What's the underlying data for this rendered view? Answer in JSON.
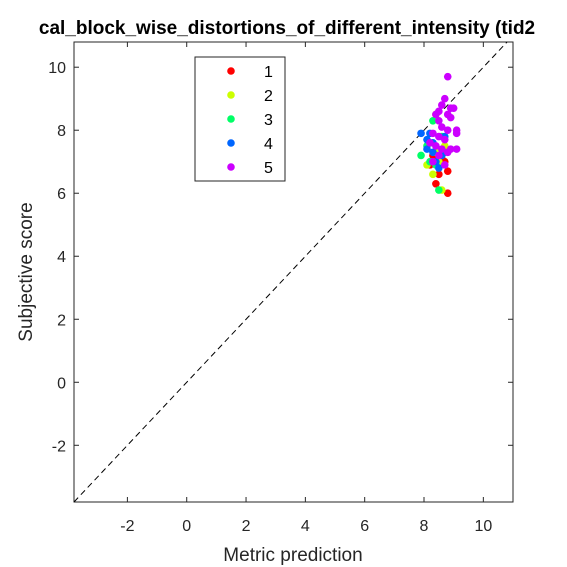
{
  "chart_data": {
    "type": "scatter",
    "title": "cal_block_wise_distortions_of_different_intensity (tid2",
    "xlabel": "Metric prediction",
    "ylabel": "Subjective score",
    "xlim": [
      -3.8,
      11.0
    ],
    "ylim": [
      -3.8,
      10.8
    ],
    "xticks": [
      -2,
      0,
      2,
      4,
      6,
      8,
      10
    ],
    "yticks": [
      -2,
      0,
      2,
      4,
      6,
      8,
      10
    ],
    "grid": false,
    "legend_position": "top-left",
    "reference_line": "y = x (dashed)",
    "series": [
      {
        "name": "1",
        "color": "#ff0000",
        "points": [
          [
            8.8,
            6.0
          ],
          [
            8.4,
            6.3
          ],
          [
            8.8,
            6.7
          ],
          [
            8.5,
            6.6
          ],
          [
            8.2,
            6.9
          ],
          [
            8.6,
            7.1
          ],
          [
            8.3,
            7.2
          ],
          [
            8.7,
            7.0
          ]
        ]
      },
      {
        "name": "2",
        "color": "#ccff00",
        "points": [
          [
            8.6,
            6.1
          ],
          [
            8.1,
            6.9
          ],
          [
            8.4,
            7.3
          ],
          [
            8.7,
            7.5
          ],
          [
            8.4,
            8.5
          ],
          [
            8.3,
            6.6
          ],
          [
            8.5,
            7.0
          ],
          [
            8.2,
            7.6
          ]
        ]
      },
      {
        "name": "3",
        "color": "#00ff66",
        "points": [
          [
            8.5,
            6.1
          ],
          [
            7.9,
            7.2
          ],
          [
            8.2,
            7.0
          ],
          [
            8.3,
            8.3
          ],
          [
            8.6,
            7.8
          ],
          [
            8.1,
            7.5
          ],
          [
            8.4,
            6.9
          ],
          [
            8.7,
            7.3
          ]
        ]
      },
      {
        "name": "4",
        "color": "#0066ff",
        "points": [
          [
            7.9,
            7.9
          ],
          [
            8.1,
            7.7
          ],
          [
            8.1,
            7.4
          ],
          [
            8.3,
            7.3
          ],
          [
            8.4,
            7.0
          ],
          [
            8.5,
            6.8
          ],
          [
            8.6,
            7.2
          ],
          [
            8.3,
            7.6
          ],
          [
            8.2,
            7.9
          ],
          [
            8.7,
            7.8
          ]
        ]
      },
      {
        "name": "5",
        "color": "#cc00ff",
        "points": [
          [
            8.8,
            9.7
          ],
          [
            8.7,
            9.0
          ],
          [
            8.6,
            8.8
          ],
          [
            8.4,
            8.5
          ],
          [
            9.0,
            8.7
          ],
          [
            8.9,
            8.4
          ],
          [
            8.5,
            8.3
          ],
          [
            8.6,
            8.1
          ],
          [
            8.8,
            8.0
          ],
          [
            9.1,
            8.0
          ],
          [
            9.1,
            7.9
          ],
          [
            8.3,
            7.9
          ],
          [
            8.5,
            7.8
          ],
          [
            8.7,
            7.7
          ],
          [
            8.2,
            7.6
          ],
          [
            8.4,
            7.5
          ],
          [
            8.6,
            7.4
          ],
          [
            8.9,
            7.4
          ],
          [
            9.1,
            7.4
          ],
          [
            8.8,
            7.3
          ],
          [
            8.5,
            7.2
          ],
          [
            8.3,
            7.0
          ],
          [
            8.7,
            6.9
          ],
          [
            8.9,
            8.7
          ],
          [
            8.5,
            8.6
          ],
          [
            8.8,
            8.5
          ]
        ]
      }
    ]
  }
}
